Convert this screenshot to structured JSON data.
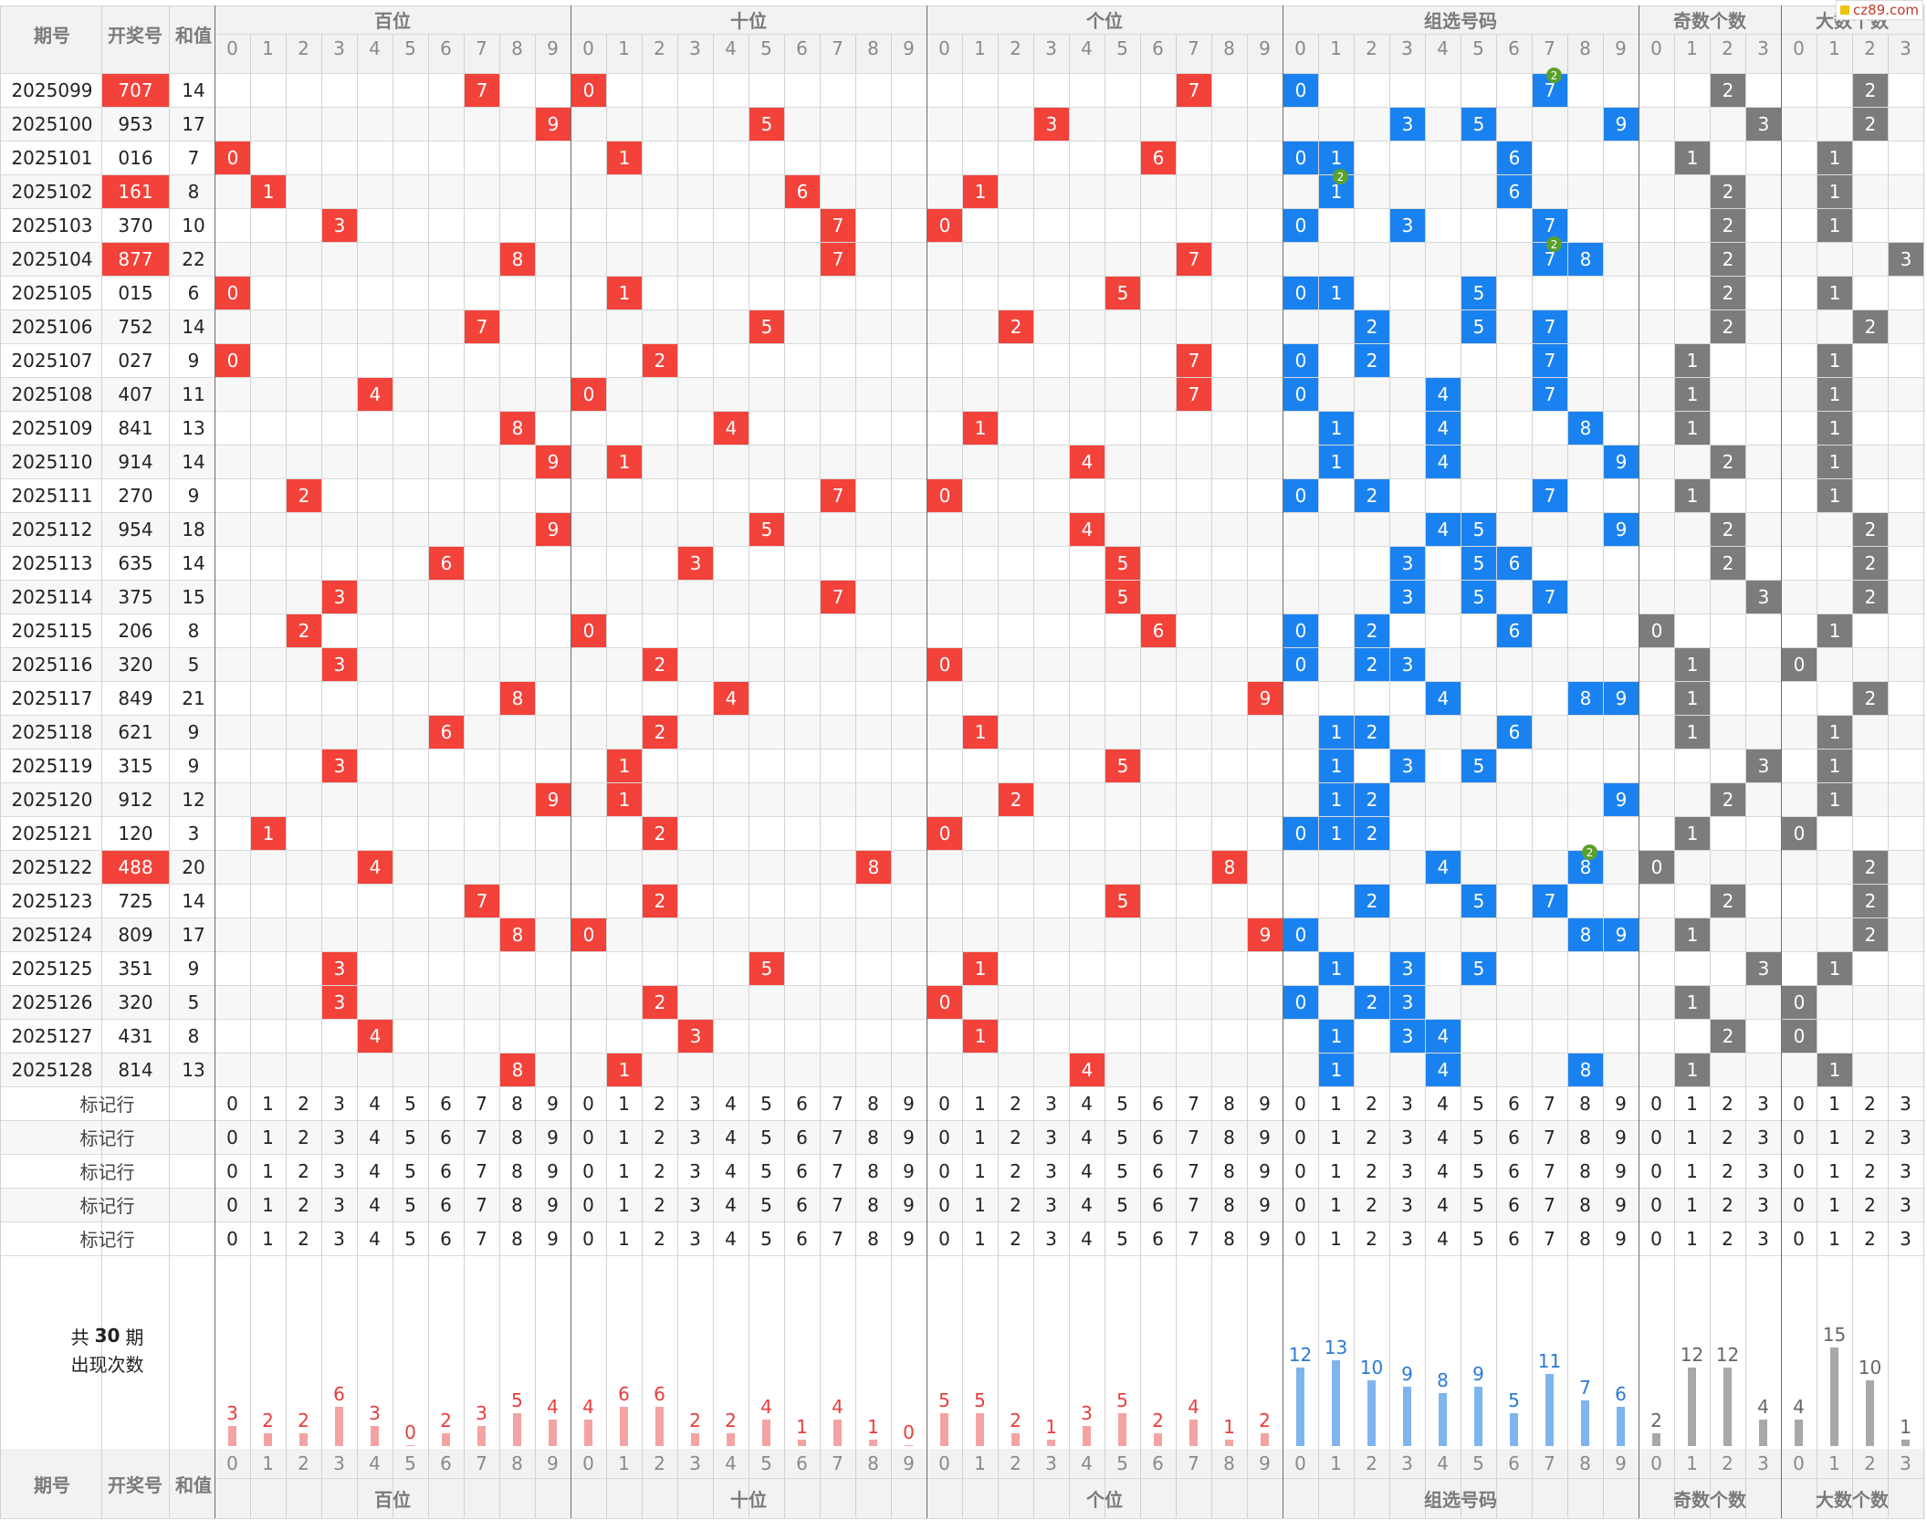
{
  "header": {
    "issue_label": "期号",
    "number_label": "开奖号",
    "sum_label": "和值",
    "groups": [
      {
        "key": "hundreds",
        "label": "百位",
        "digits": [
          "0",
          "1",
          "2",
          "3",
          "4",
          "5",
          "6",
          "7",
          "8",
          "9"
        ]
      },
      {
        "key": "tens",
        "label": "十位",
        "digits": [
          "0",
          "1",
          "2",
          "3",
          "4",
          "5",
          "6",
          "7",
          "8",
          "9"
        ]
      },
      {
        "key": "units",
        "label": "个位",
        "digits": [
          "0",
          "1",
          "2",
          "3",
          "4",
          "5",
          "6",
          "7",
          "8",
          "9"
        ]
      },
      {
        "key": "combo",
        "label": "组选号码",
        "digits": [
          "0",
          "1",
          "2",
          "3",
          "4",
          "5",
          "6",
          "7",
          "8",
          "9"
        ]
      },
      {
        "key": "odd",
        "label": "奇数个数",
        "digits": [
          "0",
          "1",
          "2",
          "3"
        ]
      },
      {
        "key": "big",
        "label": "大数个数",
        "digits": [
          "0",
          "1",
          "2",
          "3"
        ]
      }
    ]
  },
  "watermark": {
    "text": "cz89.com"
  },
  "draws": [
    {
      "issue": "2025099",
      "number": "707",
      "sum": "14",
      "highlight": true
    },
    {
      "issue": "2025100",
      "number": "953",
      "sum": "17",
      "highlight": false
    },
    {
      "issue": "2025101",
      "number": "016",
      "sum": "7",
      "highlight": false
    },
    {
      "issue": "2025102",
      "number": "161",
      "sum": "8",
      "highlight": true
    },
    {
      "issue": "2025103",
      "number": "370",
      "sum": "10",
      "highlight": false
    },
    {
      "issue": "2025104",
      "number": "877",
      "sum": "22",
      "highlight": true
    },
    {
      "issue": "2025105",
      "number": "015",
      "sum": "6",
      "highlight": false
    },
    {
      "issue": "2025106",
      "number": "752",
      "sum": "14",
      "highlight": false
    },
    {
      "issue": "2025107",
      "number": "027",
      "sum": "9",
      "highlight": false
    },
    {
      "issue": "2025108",
      "number": "407",
      "sum": "11",
      "highlight": false
    },
    {
      "issue": "2025109",
      "number": "841",
      "sum": "13",
      "highlight": false
    },
    {
      "issue": "2025110",
      "number": "914",
      "sum": "14",
      "highlight": false
    },
    {
      "issue": "2025111",
      "number": "270",
      "sum": "9",
      "highlight": false
    },
    {
      "issue": "2025112",
      "number": "954",
      "sum": "18",
      "highlight": false
    },
    {
      "issue": "2025113",
      "number": "635",
      "sum": "14",
      "highlight": false
    },
    {
      "issue": "2025114",
      "number": "375",
      "sum": "15",
      "highlight": false
    },
    {
      "issue": "2025115",
      "number": "206",
      "sum": "8",
      "highlight": false
    },
    {
      "issue": "2025116",
      "number": "320",
      "sum": "5",
      "highlight": false
    },
    {
      "issue": "2025117",
      "number": "849",
      "sum": "21",
      "highlight": false
    },
    {
      "issue": "2025118",
      "number": "621",
      "sum": "9",
      "highlight": false
    },
    {
      "issue": "2025119",
      "number": "315",
      "sum": "9",
      "highlight": false
    },
    {
      "issue": "2025120",
      "number": "912",
      "sum": "12",
      "highlight": false
    },
    {
      "issue": "2025121",
      "number": "120",
      "sum": "3",
      "highlight": false
    },
    {
      "issue": "2025122",
      "number": "488",
      "sum": "20",
      "highlight": true
    },
    {
      "issue": "2025123",
      "number": "725",
      "sum": "14",
      "highlight": false
    },
    {
      "issue": "2025124",
      "number": "809",
      "sum": "17",
      "highlight": false
    },
    {
      "issue": "2025125",
      "number": "351",
      "sum": "9",
      "highlight": false
    },
    {
      "issue": "2025126",
      "number": "320",
      "sum": "5",
      "highlight": false
    },
    {
      "issue": "2025127",
      "number": "431",
      "sum": "8",
      "highlight": false
    },
    {
      "issue": "2025128",
      "number": "814",
      "sum": "13",
      "highlight": false
    }
  ],
  "marker_rows": {
    "label": "标记行",
    "count": 5
  },
  "stats": {
    "label_prefix": "共",
    "period_count": "30",
    "label_suffix": "期",
    "label_line2": "出现次数",
    "hundreds": [
      3,
      2,
      2,
      6,
      3,
      0,
      2,
      3,
      5,
      4
    ],
    "tens": [
      4,
      6,
      6,
      2,
      2,
      4,
      1,
      4,
      1,
      0
    ],
    "units": [
      5,
      5,
      2,
      1,
      3,
      5,
      2,
      4,
      1,
      2
    ],
    "combo": [
      12,
      13,
      10,
      9,
      8,
      9,
      5,
      11,
      7,
      6
    ],
    "odd": [
      2,
      12,
      12,
      4
    ],
    "big": [
      4,
      15,
      10,
      1
    ]
  },
  "colors": {
    "position_ball": "#f2423a",
    "combo_ball": "#1a82f0",
    "count_ball": "#7c7c7c",
    "position_bar": "#f4a3a3",
    "position_bar_label": "#e83c3c",
    "combo_bar": "#7fb5ee",
    "combo_bar_label": "#2a7ad6",
    "count_bar": "#a8a8a8",
    "count_bar_label": "#666666",
    "header_bg": "#f2f2f2",
    "alt_row_bg": "#f7f7f7",
    "badge": "#5aa02c"
  }
}
